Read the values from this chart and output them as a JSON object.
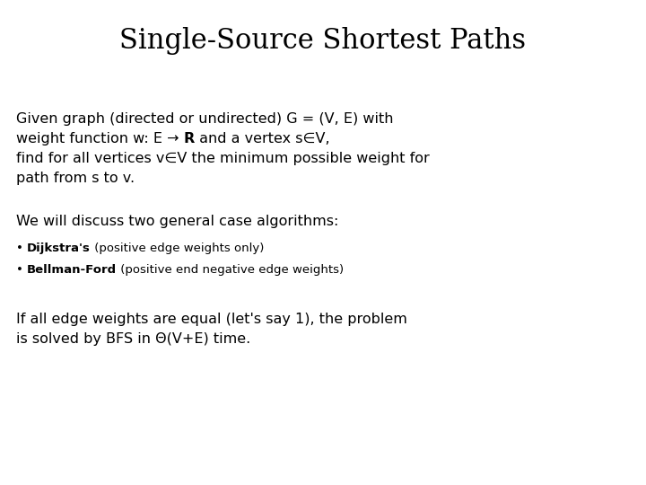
{
  "title": "Single-Source Shortest Paths",
  "title_fontsize": 22,
  "title_font": "DejaVu Serif",
  "bg_color": "#ffffff",
  "text_color": "#000000",
  "body_font": "DejaVu Sans",
  "body_fontsize": 11.5,
  "small_fontsize": 9.5,
  "paragraph2": "We will discuss two general case algorithms:",
  "bullet1_bold": "Dijkstra's",
  "bullet1_rest": " (positive edge weights only)",
  "bullet2_bold": "Bellman-Ford",
  "bullet2_rest": " (positive end negative edge weights)",
  "paragraph3_line1": "If all edge weights are equal (let's say 1), the problem",
  "paragraph3_line2": "is solved by BFS in Θ(V+E) time."
}
